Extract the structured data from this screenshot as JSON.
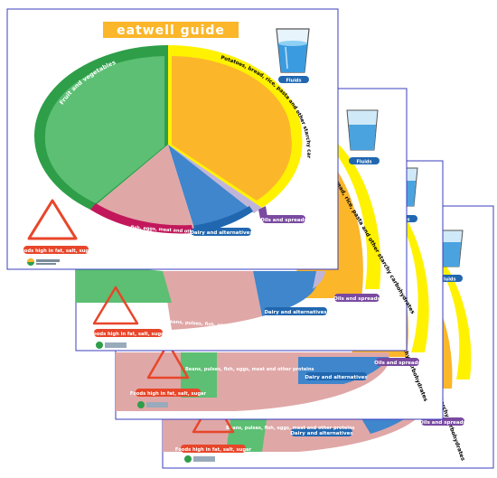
{
  "title": "eatwell guide",
  "sections": {
    "fruit_veg": "Fruit and vegetables",
    "starchy": "Potatoes, bread, rice, pasta and other starchy carbohydrates",
    "proteins": "Beans, pulses, fish, eggs, meat and other proteins",
    "dairy": "Dairy and alternatives",
    "oils": "Oils and spreads",
    "fluids": "Fluids",
    "fat_salt_sugar": "Foods high in fat, salt, sugar"
  },
  "colors": {
    "green": "#2e9e49",
    "green_light": "#5cbf73",
    "yellow": "#fff200",
    "orange": "#fbb62a",
    "pink": "#e0a7a7",
    "blue": "#3f86cc",
    "purple": "#7a4aa0",
    "red": "#e8462a",
    "title_bg": "#fbb62a",
    "frame": "#3b3fbf"
  }
}
